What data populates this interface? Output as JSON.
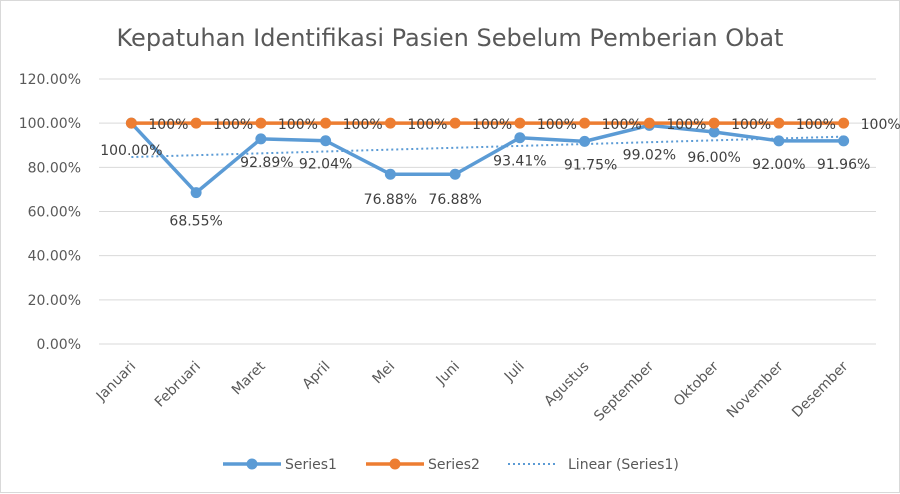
{
  "chart_data": {
    "type": "line",
    "title": "Kepatuhan Identifikasi Pasien Sebelum Pemberian Obat",
    "categories": [
      "Januari",
      "Februari",
      "Maret",
      "April",
      "Mei",
      "Juni",
      "Juli",
      "Agustus",
      "September",
      "Oktober",
      "November",
      "Desember"
    ],
    "ylim": [
      0,
      1.2
    ],
    "yticks": [
      "0.00%",
      "20.00%",
      "40.00%",
      "60.00%",
      "80.00%",
      "100.00%",
      "120.00%"
    ],
    "grid": true,
    "legend_position": "bottom",
    "series": [
      {
        "name": "Series1",
        "color": "#5b9bd5",
        "values": [
          1.0,
          0.6855,
          0.9289,
          0.9204,
          0.7688,
          0.7688,
          0.9341,
          0.9175,
          0.9902,
          0.96,
          0.92,
          0.9196
        ],
        "labels": [
          "100.00%",
          "68.55%",
          "92.89%",
          "92.04%",
          "76.88%",
          "76.88%",
          "93.41%",
          "91.75%",
          "99.02%",
          "96.00%",
          "92.00%",
          "91.96%"
        ]
      },
      {
        "name": "Series2",
        "color": "#ed7d31",
        "values": [
          1,
          1,
          1,
          1,
          1,
          1,
          1,
          1,
          1,
          1,
          1,
          1
        ],
        "labels": [
          "100%",
          "100%",
          "100%",
          "100%",
          "100%",
          "100%",
          "100%",
          "100%",
          "100%",
          "100%",
          "100%",
          "100%"
        ]
      }
    ],
    "trendline": {
      "name": "Linear (Series1)",
      "of_series": "Series1",
      "type": "linear",
      "color": "#5b9bd5",
      "style": "dotted"
    }
  }
}
